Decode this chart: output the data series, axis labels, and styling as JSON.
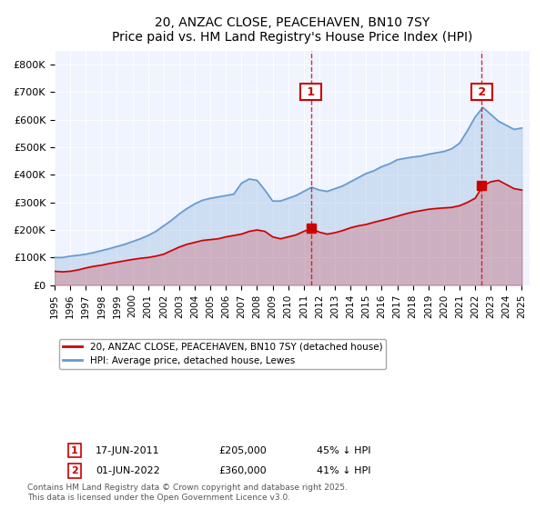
{
  "title": "20, ANZAC CLOSE, PEACEHAVEN, BN10 7SY",
  "subtitle": "Price paid vs. HM Land Registry's House Price Index (HPI)",
  "legend_label_red": "20, ANZAC CLOSE, PEACEHAVEN, BN10 7SY (detached house)",
  "legend_label_blue": "HPI: Average price, detached house, Lewes",
  "annotation1_label": "1",
  "annotation1_date": "17-JUN-2011",
  "annotation1_price": "£205,000",
  "annotation1_hpi": "45% ↓ HPI",
  "annotation2_label": "2",
  "annotation2_date": "01-JUN-2022",
  "annotation2_price": "£360,000",
  "annotation2_hpi": "41% ↓ HPI",
  "vline1_year": 2011.46,
  "vline2_year": 2022.42,
  "footer": "Contains HM Land Registry data © Crown copyright and database right 2025.\nThis data is licensed under the Open Government Licence v3.0.",
  "red_color": "#cc0000",
  "blue_color": "#6699cc",
  "vline_color": "#cc0000",
  "background_color": "#f0f4ff",
  "ylim": [
    0,
    850000
  ],
  "xlim_start": 1995.0,
  "xlim_end": 2025.5,
  "yticks": [
    0,
    100000,
    200000,
    300000,
    400000,
    500000,
    600000,
    700000,
    800000
  ],
  "ytick_labels": [
    "£0",
    "£100K",
    "£200K",
    "£300K",
    "£400K",
    "£500K",
    "£600K",
    "£700K",
    "£800K"
  ],
  "xticks": [
    1995,
    1996,
    1997,
    1998,
    1999,
    2000,
    2001,
    2002,
    2003,
    2004,
    2005,
    2006,
    2007,
    2008,
    2009,
    2010,
    2011,
    2012,
    2013,
    2014,
    2015,
    2016,
    2017,
    2018,
    2019,
    2020,
    2021,
    2022,
    2023,
    2024,
    2025
  ],
  "red_x": [
    1995.0,
    1995.5,
    1996.0,
    1996.5,
    1997.0,
    1997.5,
    1998.0,
    1998.5,
    1999.0,
    1999.5,
    2000.0,
    2000.5,
    2001.0,
    2001.5,
    2002.0,
    2002.5,
    2003.0,
    2003.5,
    2004.0,
    2004.5,
    2005.0,
    2005.5,
    2006.0,
    2006.5,
    2007.0,
    2007.5,
    2008.0,
    2008.5,
    2009.0,
    2009.5,
    2010.0,
    2010.5,
    2011.0,
    2011.5,
    2012.0,
    2012.5,
    2013.0,
    2013.5,
    2014.0,
    2014.5,
    2015.0,
    2015.5,
    2016.0,
    2016.5,
    2017.0,
    2017.5,
    2018.0,
    2018.5,
    2019.0,
    2019.5,
    2020.0,
    2020.5,
    2021.0,
    2021.5,
    2022.0,
    2022.5,
    2023.0,
    2023.5,
    2024.0,
    2024.5,
    2025.0
  ],
  "red_y": [
    50000,
    48000,
    50000,
    55000,
    62000,
    68000,
    72000,
    78000,
    83000,
    88000,
    93000,
    97000,
    100000,
    105000,
    112000,
    125000,
    138000,
    148000,
    155000,
    162000,
    165000,
    168000,
    175000,
    180000,
    185000,
    195000,
    200000,
    195000,
    175000,
    168000,
    175000,
    182000,
    195000,
    205000,
    192000,
    185000,
    190000,
    198000,
    208000,
    215000,
    220000,
    228000,
    235000,
    242000,
    250000,
    258000,
    265000,
    270000,
    275000,
    278000,
    280000,
    282000,
    288000,
    300000,
    315000,
    360000,
    375000,
    380000,
    365000,
    350000,
    345000
  ],
  "blue_x": [
    1995.0,
    1995.5,
    1996.0,
    1996.5,
    1997.0,
    1997.5,
    1998.0,
    1998.5,
    1999.0,
    1999.5,
    2000.0,
    2000.5,
    2001.0,
    2001.5,
    2002.0,
    2002.5,
    2003.0,
    2003.5,
    2004.0,
    2004.5,
    2005.0,
    2005.5,
    2006.0,
    2006.5,
    2007.0,
    2007.5,
    2008.0,
    2008.5,
    2009.0,
    2009.5,
    2010.0,
    2010.5,
    2011.0,
    2011.5,
    2012.0,
    2012.5,
    2013.0,
    2013.5,
    2014.0,
    2014.5,
    2015.0,
    2015.5,
    2016.0,
    2016.5,
    2017.0,
    2017.5,
    2018.0,
    2018.5,
    2019.0,
    2019.5,
    2020.0,
    2020.5,
    2021.0,
    2021.5,
    2022.0,
    2022.5,
    2023.0,
    2023.5,
    2024.0,
    2024.5,
    2025.0
  ],
  "blue_y": [
    100000,
    100000,
    105000,
    108000,
    112000,
    118000,
    125000,
    132000,
    140000,
    148000,
    158000,
    168000,
    180000,
    195000,
    215000,
    235000,
    258000,
    278000,
    295000,
    308000,
    315000,
    320000,
    325000,
    330000,
    370000,
    385000,
    380000,
    345000,
    305000,
    305000,
    315000,
    325000,
    340000,
    355000,
    345000,
    340000,
    350000,
    360000,
    375000,
    390000,
    405000,
    415000,
    430000,
    440000,
    455000,
    460000,
    465000,
    468000,
    475000,
    480000,
    485000,
    495000,
    515000,
    560000,
    610000,
    645000,
    620000,
    595000,
    580000,
    565000,
    570000
  ]
}
